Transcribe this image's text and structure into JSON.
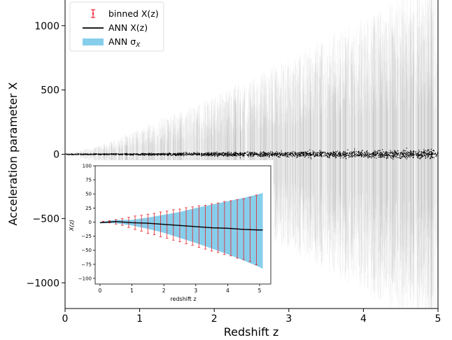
{
  "chart_data": [
    {
      "type": "scatter",
      "xlabel": "Redshift z",
      "ylabel": "Acceleration parameter X",
      "xlim": [
        0,
        5
      ],
      "ylim": [
        -1200,
        1200
      ],
      "xticks": [
        0,
        1,
        2,
        3,
        4,
        5
      ],
      "xtick_labels": [
        "0",
        "1",
        "2",
        "3",
        "4",
        "5"
      ],
      "yticks": [
        -1000,
        -500,
        0,
        500,
        1000
      ],
      "ytick_labels": [
        "−1000",
        "−500",
        "0",
        "500",
        "1000"
      ],
      "grid": false,
      "legend_position": "top-left",
      "legend": [
        {
          "label": "binned X(z)",
          "kind": "errorbar",
          "color": "#e8202a"
        },
        {
          "label": "ANN X(z)",
          "kind": "line",
          "color": "#000000"
        },
        {
          "label_main": "ANN σ",
          "label_sub": "X",
          "kind": "band",
          "color": "#87ceeb"
        }
      ],
      "series": [
        {
          "kind": "points_with_errorbars",
          "color": "#000000",
          "errorbar_color": "#9a9a9a",
          "approx_count": 2000,
          "x_range": [
            0,
            5
          ],
          "value_scatter_at_x": {
            "x": [
              0,
              1,
              2,
              3,
              4,
              5
            ],
            "y": [
              2,
              5,
              10,
              15,
              20,
              25
            ]
          },
          "errorbar_half_width_at_x": {
            "x": [
              0,
              0.5,
              1,
              2,
              3,
              4,
              5
            ],
            "y": [
              0,
              60,
              160,
              360,
              600,
              850,
              1100
            ]
          }
        }
      ]
    },
    {
      "type": "bar",
      "position": "inset lower-left",
      "xlabel": "redshift z",
      "ylabel": "X(z)",
      "xlim": [
        -0.15,
        5.35
      ],
      "ylim": [
        -110,
        100
      ],
      "xticks": [
        0,
        1,
        2,
        3,
        4,
        5
      ],
      "xtick_labels": [
        "0",
        "1",
        "2",
        "3",
        "4",
        "5"
      ],
      "yticks": [
        -100,
        -75,
        -50,
        -25,
        0,
        25,
        50,
        75,
        100
      ],
      "ytick_labels": [
        "−100",
        "−75",
        "−50",
        "−25",
        "0",
        "25",
        "50",
        "75",
        "100"
      ],
      "band": {
        "name": "ANN σX",
        "color": "#87ceeb",
        "x": [
          0,
          0.5,
          1,
          1.5,
          2,
          2.5,
          3,
          3.5,
          4,
          4.5,
          5,
          5.1
        ],
        "upper": [
          0,
          4,
          4,
          8,
          13,
          18,
          25,
          31,
          37,
          43,
          50,
          52
        ],
        "lower": [
          -2,
          -2,
          -6,
          -12,
          -19,
          -28,
          -37,
          -47,
          -57,
          -68,
          -80,
          -83
        ]
      },
      "ann_line": {
        "name": "ANN X(z)",
        "color": "#000000",
        "x": [
          0,
          0.5,
          1,
          1.5,
          2,
          2.5,
          3,
          3.5,
          4,
          4.5,
          5,
          5.1
        ],
        "y": [
          -1,
          1,
          -1,
          -2,
          -4,
          -6,
          -8,
          -10,
          -11,
          -13,
          -14,
          -14
        ]
      },
      "binned": {
        "name": "binned X(z)",
        "color": "#e8202a",
        "x": [
          0.1,
          0.3,
          0.5,
          0.7,
          0.9,
          1.1,
          1.3,
          1.5,
          1.7,
          1.9,
          2.1,
          2.3,
          2.5,
          2.7,
          2.9,
          3.1,
          3.3,
          3.5,
          3.7,
          3.9,
          4.1,
          4.3,
          4.5,
          4.7,
          4.9
        ],
        "y": [
          0.5,
          0.6,
          0.5,
          0.2,
          -0.5,
          -1.2,
          -2,
          -3,
          -3.5,
          -4,
          -4.5,
          -5,
          -6,
          -6.5,
          -7,
          -8,
          -9,
          -9.5,
          -10,
          -10.5,
          -11,
          -12,
          -12.5,
          -13,
          -14
        ],
        "err": [
          1,
          2,
          4,
          6,
          9,
          12,
          14,
          17,
          19,
          22,
          24,
          27,
          29,
          32,
          34,
          37,
          39,
          42,
          44,
          47,
          49,
          52,
          54,
          57,
          62
        ]
      }
    }
  ]
}
